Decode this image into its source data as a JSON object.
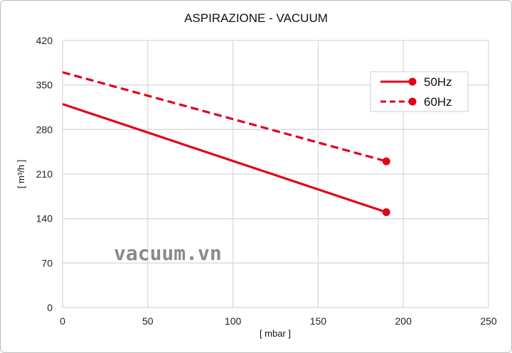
{
  "chart_data": {
    "type": "line",
    "title": "ASPIRAZIONE - VACUUM",
    "xlabel": "[ mbar ]",
    "ylabel": "[ m³/h ]",
    "xlim": [
      0,
      250
    ],
    "ylim": [
      0,
      420
    ],
    "xticks": [
      0,
      50,
      100,
      150,
      200,
      250
    ],
    "yticks": [
      0,
      70,
      140,
      210,
      280,
      350,
      420
    ],
    "grid": true,
    "legend_position": "top-right",
    "series": [
      {
        "name": "50Hz",
        "style": "solid",
        "color": "#e3001b",
        "x": [
          0,
          190
        ],
        "y": [
          320,
          150
        ],
        "end_marker": true
      },
      {
        "name": "60Hz",
        "style": "dashed",
        "color": "#e3001b",
        "x": [
          0,
          190
        ],
        "y": [
          370,
          230
        ],
        "end_marker": true
      }
    ],
    "watermark": "vacuum.vn"
  }
}
